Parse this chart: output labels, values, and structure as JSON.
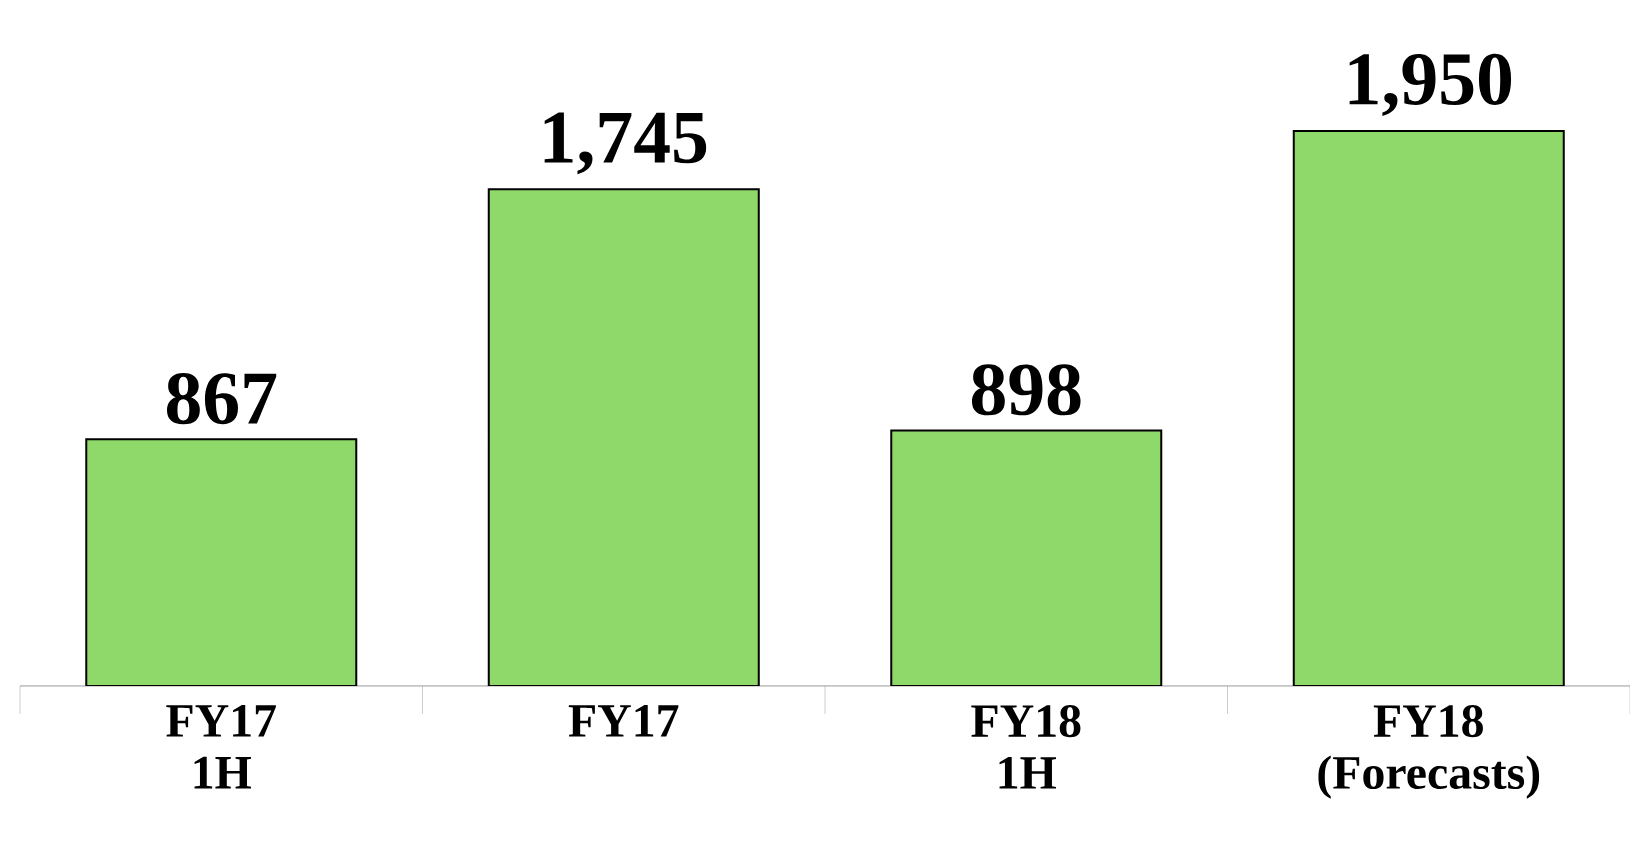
{
  "chart_data": {
    "type": "bar",
    "categories": [
      "FY17 1H",
      "FY17",
      "FY18 1H",
      "FY18 (Forecasts)"
    ],
    "values": [
      867,
      1745,
      898,
      1950
    ],
    "value_labels": [
      "867",
      "1,745",
      "898",
      "1,950"
    ],
    "color": "#8fd96a"
  }
}
